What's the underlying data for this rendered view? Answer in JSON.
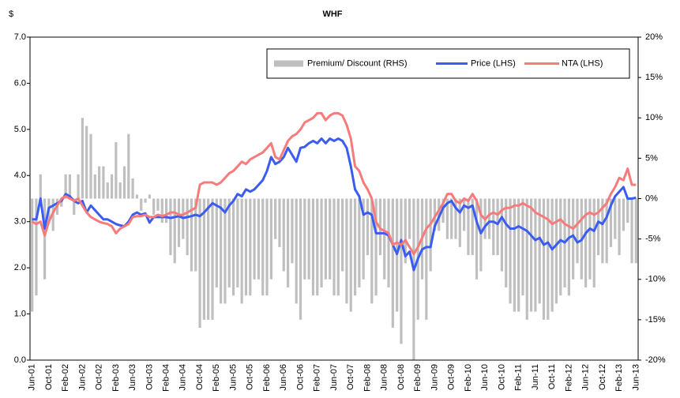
{
  "chart_data": {
    "type": "combo",
    "title": "WHF",
    "y_label": "$",
    "categories": [
      "Jun-01",
      null,
      null,
      null,
      "Oct-01",
      null,
      null,
      null,
      "Feb-02",
      null,
      null,
      null,
      "Jun-02",
      null,
      null,
      null,
      "Oct-02",
      null,
      null,
      null,
      "Feb-03",
      null,
      null,
      null,
      "Jun-03",
      null,
      null,
      null,
      "Oct-03",
      null,
      null,
      null,
      "Feb-04",
      null,
      null,
      null,
      "Jun-04",
      null,
      null,
      null,
      "Oct-04",
      null,
      null,
      null,
      "Feb-05",
      null,
      null,
      null,
      "Jun-05",
      null,
      null,
      null,
      "Oct-05",
      null,
      null,
      null,
      "Feb-06",
      null,
      null,
      null,
      "Jun-06",
      null,
      null,
      null,
      "Oct-06",
      null,
      null,
      null,
      "Feb-07",
      null,
      null,
      null,
      "Jun-07",
      null,
      null,
      null,
      "Oct-07",
      null,
      null,
      null,
      "Feb-08",
      null,
      null,
      null,
      "Jun-08",
      null,
      null,
      null,
      "Oct-08",
      null,
      null,
      null,
      "Feb-09",
      null,
      null,
      null,
      "Jun-09",
      null,
      null,
      null,
      "Oct-09",
      null,
      null,
      null,
      "Feb-10",
      null,
      null,
      null,
      "Jun-10",
      null,
      null,
      null,
      "Oct-10",
      null,
      null,
      null,
      "Feb-11",
      null,
      null,
      null,
      "Jun-11",
      null,
      null,
      null,
      "Oct-11",
      null,
      null,
      null,
      "Feb-12",
      null,
      null,
      null,
      "Jun-12",
      null,
      null,
      null,
      "Oct-12",
      null,
      null,
      null,
      "Feb-13",
      null,
      null,
      null,
      "Jun-13"
    ],
    "series": [
      {
        "name": "Premium/ Discount (RHS)",
        "type": "bar",
        "axis": "y2",
        "color": "#bfbfbf",
        "values": [
          -14,
          -12,
          3,
          -10,
          -3,
          -4,
          -2,
          -1,
          3,
          3,
          -2,
          3,
          10,
          9,
          8,
          3,
          4,
          4,
          2,
          3,
          7,
          2,
          4,
          8,
          2.5,
          0.5,
          -1.5,
          -0.5,
          0.5,
          -2,
          -1.5,
          -3,
          -3,
          -7,
          -8,
          -6,
          -5,
          -7,
          -9,
          -9,
          -16,
          -15,
          -15,
          -15,
          -11,
          -13,
          -13,
          -11,
          -12,
          -11,
          -13,
          -12,
          -12,
          -10,
          -10,
          -12,
          -12,
          -10,
          -5,
          -6,
          -9,
          -11,
          -8,
          -13,
          -15,
          -10,
          -10,
          -12,
          -12,
          -11,
          -10,
          -10,
          -12,
          -12,
          -9,
          -13,
          -14,
          -12,
          -11,
          -10,
          -7,
          -13,
          -12,
          -7,
          -10,
          -11,
          -16,
          -14,
          -18,
          -8,
          -5,
          -20,
          -15,
          -10,
          -15,
          -9,
          -4,
          -4,
          -3,
          -5,
          -5,
          -5,
          -6,
          -4,
          -7,
          -7,
          -10,
          -9,
          -5,
          -5,
          -7,
          -7,
          -9,
          -11,
          -13,
          -14,
          -14,
          -12,
          -15,
          -14,
          -14,
          -13,
          -15,
          -15,
          -14,
          -13,
          -12,
          -11,
          -12,
          -10,
          -8,
          -10,
          -11,
          -10,
          -11,
          -7,
          -8,
          -8,
          -6,
          -5,
          -7,
          -4,
          -3,
          -8,
          -8
        ]
      },
      {
        "name": "Price (LHS)",
        "type": "line",
        "color": "#3b5cf0",
        "values": [
          3.05,
          3.05,
          3.5,
          2.85,
          3.3,
          3.35,
          3.4,
          3.45,
          3.6,
          3.55,
          3.45,
          3.4,
          3.45,
          3.2,
          3.35,
          3.25,
          3.15,
          3.05,
          3.05,
          3.0,
          2.95,
          2.92,
          2.9,
          3.0,
          3.15,
          3.2,
          3.15,
          3.18,
          2.98,
          3.1,
          3.1,
          3.1,
          3.1,
          3.08,
          3.1,
          3.12,
          3.08,
          3.1,
          3.12,
          3.15,
          3.12,
          3.2,
          3.3,
          3.4,
          3.35,
          3.3,
          3.2,
          3.35,
          3.45,
          3.6,
          3.55,
          3.7,
          3.65,
          3.7,
          3.8,
          3.9,
          4.1,
          4.4,
          4.25,
          4.3,
          4.4,
          4.6,
          4.45,
          4.3,
          4.6,
          4.62,
          4.7,
          4.75,
          4.7,
          4.8,
          4.7,
          4.8,
          4.75,
          4.8,
          4.75,
          4.6,
          4.2,
          3.7,
          3.55,
          3.15,
          3.2,
          3.15,
          2.75,
          2.75,
          2.75,
          2.7,
          2.5,
          2.3,
          2.6,
          2.25,
          2.35,
          1.95,
          2.2,
          2.4,
          2.45,
          2.45,
          2.9,
          3.1,
          3.3,
          3.4,
          3.45,
          3.3,
          3.2,
          3.35,
          3.3,
          3.35,
          3.0,
          2.75,
          2.9,
          3.0,
          3.0,
          2.95,
          3.1,
          2.95,
          2.85,
          2.85,
          2.9,
          2.85,
          2.8,
          2.7,
          2.6,
          2.65,
          2.5,
          2.55,
          2.4,
          2.5,
          2.6,
          2.55,
          2.65,
          2.7,
          2.55,
          2.6,
          2.75,
          2.85,
          2.8,
          3.0,
          2.95,
          3.1,
          3.35,
          3.55,
          3.65,
          3.75,
          3.5,
          3.5,
          3.52
        ]
      },
      {
        "name": "NTA (LHS)",
        "type": "line",
        "color": "#f77b7b",
        "values": [
          3.0,
          2.95,
          3.0,
          2.7,
          3.0,
          3.2,
          3.35,
          3.5,
          3.55,
          3.5,
          3.45,
          3.5,
          3.35,
          3.2,
          3.1,
          3.05,
          3.0,
          2.97,
          2.95,
          2.9,
          2.75,
          2.85,
          2.9,
          2.95,
          3.1,
          3.12,
          3.12,
          3.15,
          3.1,
          3.1,
          3.15,
          3.12,
          3.15,
          3.2,
          3.2,
          3.15,
          3.15,
          3.2,
          3.25,
          3.3,
          3.8,
          3.85,
          3.85,
          3.85,
          3.8,
          3.85,
          3.95,
          4.05,
          4.1,
          4.2,
          4.3,
          4.25,
          4.35,
          4.4,
          4.45,
          4.5,
          4.6,
          4.7,
          4.4,
          4.35,
          4.55,
          4.75,
          4.85,
          4.9,
          5.0,
          5.15,
          5.2,
          5.25,
          5.35,
          5.35,
          5.2,
          5.3,
          5.35,
          5.35,
          5.3,
          5.1,
          4.8,
          4.2,
          4.1,
          3.85,
          3.7,
          3.5,
          3.0,
          2.85,
          2.8,
          2.75,
          2.5,
          2.55,
          2.5,
          2.6,
          2.45,
          2.3,
          2.45,
          2.65,
          2.85,
          2.95,
          3.1,
          3.25,
          3.4,
          3.6,
          3.6,
          3.45,
          3.4,
          3.5,
          3.45,
          3.6,
          3.45,
          3.15,
          3.05,
          3.15,
          3.2,
          3.15,
          3.25,
          3.3,
          3.3,
          3.35,
          3.35,
          3.4,
          3.35,
          3.3,
          3.2,
          3.15,
          3.1,
          3.05,
          2.95,
          3.0,
          3.05,
          2.95,
          2.9,
          2.85,
          2.95,
          3.05,
          3.15,
          3.2,
          3.15,
          3.2,
          3.3,
          3.4,
          3.6,
          3.75,
          3.95,
          3.9,
          4.15,
          3.8,
          3.8
        ]
      }
    ],
    "ylim": [
      0,
      7
    ],
    "yticks": [
      {
        "value": 0,
        "label": "0.0"
      },
      {
        "value": 1,
        "label": "1.0"
      },
      {
        "value": 2,
        "label": "2.0"
      },
      {
        "value": 3,
        "label": "3.0"
      },
      {
        "value": 4,
        "label": "4.0"
      },
      {
        "value": 5,
        "label": "5.0"
      },
      {
        "value": 6,
        "label": "6.0"
      },
      {
        "value": 7,
        "label": "7.0"
      }
    ],
    "y2lim": [
      -20,
      20
    ],
    "y2ticks": [
      {
        "value": -20,
        "label": "-20%"
      },
      {
        "value": -15,
        "label": "-15%"
      },
      {
        "value": -10,
        "label": "-10%"
      },
      {
        "value": -5,
        "label": "-5%"
      },
      {
        "value": 0,
        "label": "0%"
      },
      {
        "value": 5,
        "label": "5%"
      },
      {
        "value": 10,
        "label": "10%"
      },
      {
        "value": 15,
        "label": "15%"
      },
      {
        "value": 20,
        "label": "20%"
      }
    ],
    "grid": false,
    "legend": "top-right"
  }
}
